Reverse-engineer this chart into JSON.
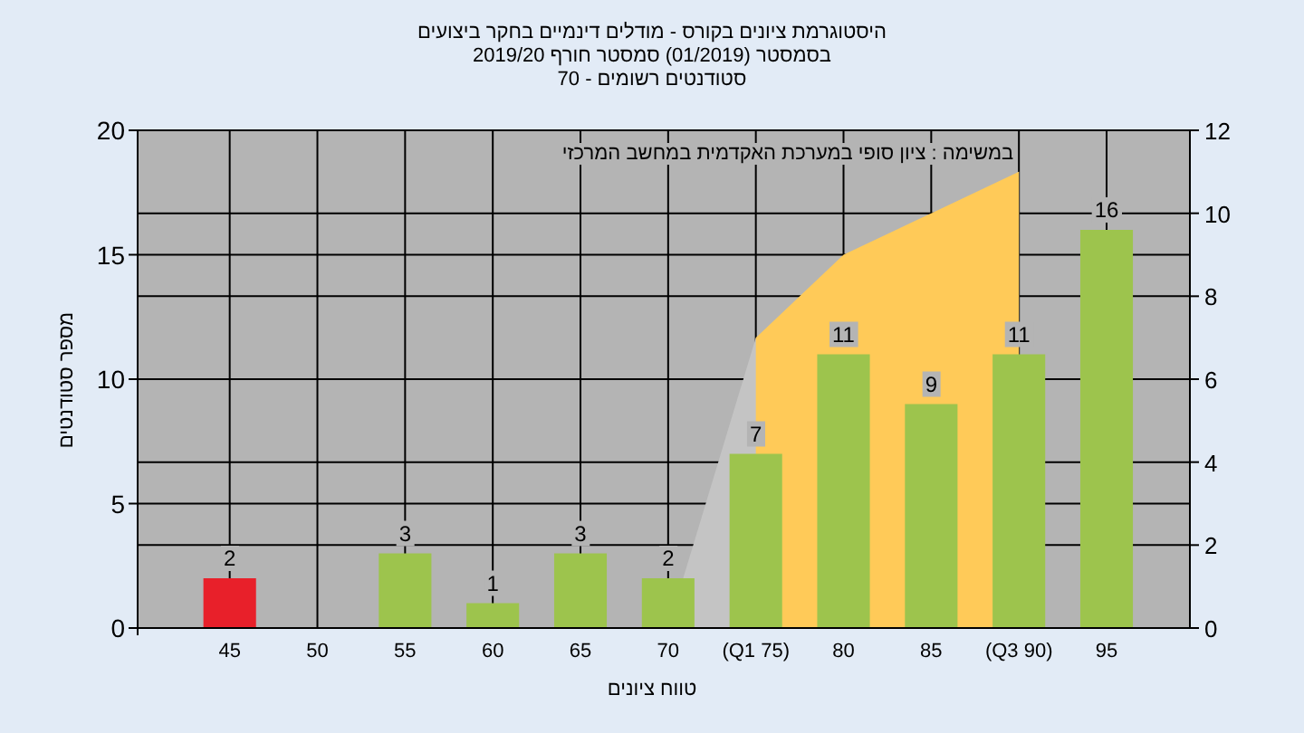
{
  "chart_data": {
    "type": "bar",
    "title": "היסטוגרמת ציונים בקורס - מודלים דינמיים בחקר ביצועים",
    "subtitle": "בסמסטר (01/2019) סמסטר חורף 2019/20",
    "annotations": [
      "סטודנטים רשומים - 70",
      "במשימה : ציון סופי במערכת האקדמית במחשב המרכזי"
    ],
    "xlabel": "טווח ציונים",
    "ylabel": "מספר סטודנטים",
    "categories": [
      "45",
      "50",
      "55",
      "60",
      "65",
      "70",
      "(Q1 75)",
      "80",
      "85",
      "(Q3 90)",
      "95"
    ],
    "series": [
      {
        "type": "bar",
        "colors": [
          "#e8202a",
          "#9dc44d",
          "#9dc44d",
          "#9dc44d",
          "#9dc44d",
          "#9dc44d",
          "#9dc44d",
          "#9dc44d",
          "#9dc44d",
          "#9dc44d",
          "#9dc44d"
        ],
        "values": [
          2,
          0,
          3,
          1,
          3,
          2,
          7,
          11,
          9,
          11,
          16
        ],
        "value_labels": [
          "2",
          null,
          "3",
          "1",
          "3",
          "2",
          "7",
          "11",
          "9",
          "11",
          "16"
        ]
      },
      {
        "type": "area",
        "axis": "y2",
        "color": "#c4c4c4",
        "values": [
          null,
          null,
          null,
          null,
          null,
          0,
          7,
          null,
          null,
          11,
          null
        ]
      },
      {
        "type": "area",
        "axis": "y2",
        "color": "#ffca58",
        "values": [
          null,
          null,
          null,
          null,
          null,
          null,
          7,
          9,
          10,
          11,
          null
        ]
      }
    ],
    "ylim": [
      0,
      20
    ],
    "yticks": [
      0,
      5,
      10,
      15,
      20
    ],
    "y2lim": [
      0,
      12
    ],
    "y2ticks": [
      0,
      2,
      4,
      6,
      8,
      10,
      12
    ],
    "grid": true
  }
}
